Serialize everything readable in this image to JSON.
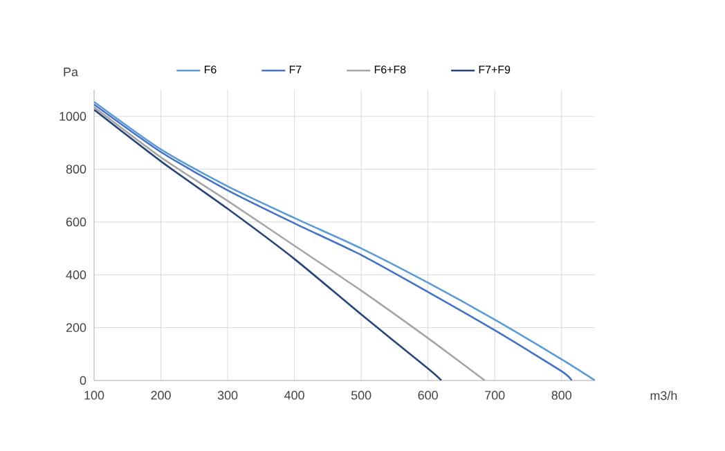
{
  "chart_data": {
    "type": "line",
    "ylabel": "Pa",
    "xlabel": "m3/h",
    "xlim": [
      100,
      850
    ],
    "xticks": [
      100,
      200,
      300,
      400,
      500,
      600,
      700,
      800
    ],
    "ylim": [
      0,
      1100
    ],
    "yticks": [
      0,
      200,
      400,
      600,
      800,
      1000
    ],
    "grid": true,
    "legend": "top",
    "marker": "none",
    "series": [
      {
        "name": "F6",
        "color": "#5b9bd5",
        "x": [
          100,
          200,
          300,
          400,
          500,
          600,
          700,
          800,
          850
        ],
        "values": [
          1055,
          875,
          735,
          615,
          500,
          370,
          230,
          80,
          0
        ]
      },
      {
        "name": "F7",
        "color": "#4472c4",
        "x": [
          100,
          200,
          300,
          400,
          500,
          600,
          700,
          800,
          815
        ],
        "values": [
          1045,
          865,
          720,
          595,
          475,
          335,
          190,
          35,
          0
        ]
      },
      {
        "name": "F6+F8",
        "color": "#a5a5a5",
        "x": [
          100,
          200,
          300,
          400,
          500,
          600,
          685
        ],
        "values": [
          1035,
          845,
          680,
          510,
          340,
          160,
          0
        ]
      },
      {
        "name": "F7+F9",
        "color": "#264478",
        "x": [
          100,
          200,
          300,
          400,
          500,
          600,
          620
        ],
        "values": [
          1025,
          830,
          650,
          460,
          250,
          45,
          0
        ]
      }
    ]
  }
}
